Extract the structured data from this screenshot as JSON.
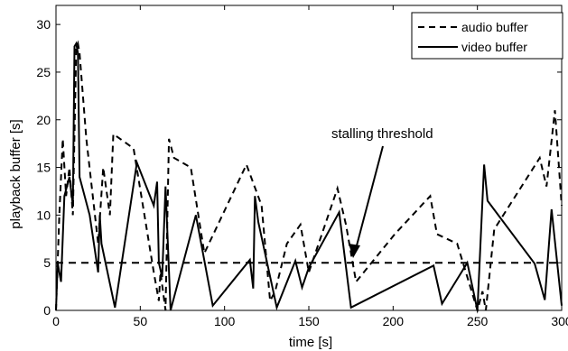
{
  "chart_data": {
    "type": "line",
    "xlabel": "time [s]",
    "ylabel": "playback buffer [s]",
    "xlim": [
      0,
      300
    ],
    "ylim": [
      0,
      32
    ],
    "x_ticks": [
      0,
      50,
      100,
      150,
      200,
      250,
      300
    ],
    "y_ticks": [
      0,
      5,
      10,
      15,
      20,
      25,
      30
    ],
    "grid": false,
    "legend_position": "top-right",
    "threshold": {
      "y": 5,
      "label": "stalling threshold",
      "style": "dashed"
    },
    "series": [
      {
        "name": "audio buffer",
        "style": "dashed",
        "color": "#000000",
        "x": [
          0,
          2,
          4,
          6,
          8,
          10,
          12,
          13,
          14,
          18,
          25,
          28,
          32,
          34,
          46,
          58,
          61,
          62,
          65,
          67,
          70,
          80,
          88,
          113,
          122,
          127,
          130,
          137,
          145,
          150,
          167,
          172,
          178,
          201,
          222,
          226,
          238,
          250,
          253,
          255,
          260,
          287,
          291,
          296,
          300
        ],
        "y": [
          0,
          10,
          18,
          12,
          15,
          10,
          27.5,
          28,
          27,
          18,
          7,
          15,
          10,
          18.5,
          17,
          4,
          1,
          4,
          0,
          18,
          16,
          15,
          6,
          15.3,
          11,
          1,
          2,
          7,
          9,
          4,
          12.8,
          9,
          3,
          8,
          12,
          8,
          7,
          0,
          2,
          0,
          8.5,
          16,
          13,
          21,
          11
        ]
      },
      {
        "name": "video buffer",
        "style": "solid",
        "color": "#000000",
        "x": [
          0,
          1,
          2,
          3,
          5,
          8,
          10,
          11,
          12,
          13,
          14,
          20,
          25,
          26,
          27,
          35,
          48,
          58,
          60,
          61,
          63,
          65,
          68,
          83,
          93,
          115,
          117,
          118,
          120,
          131,
          142,
          146,
          150,
          168,
          175,
          224,
          229,
          244,
          250,
          254,
          256,
          284,
          290,
          294,
          300
        ],
        "y": [
          0,
          5,
          4,
          3,
          12,
          14,
          11,
          27.7,
          28,
          27,
          14,
          10,
          4,
          10,
          7,
          0.3,
          15.5,
          11,
          13.5,
          5,
          3.5,
          13,
          0,
          10,
          0.5,
          5.3,
          2.3,
          12,
          9.3,
          0.3,
          5.2,
          2.4,
          4.5,
          10.3,
          0.3,
          4.7,
          0.7,
          5,
          0,
          15.3,
          11.5,
          4.9,
          1.1,
          10.6,
          0.5
        ]
      }
    ]
  }
}
